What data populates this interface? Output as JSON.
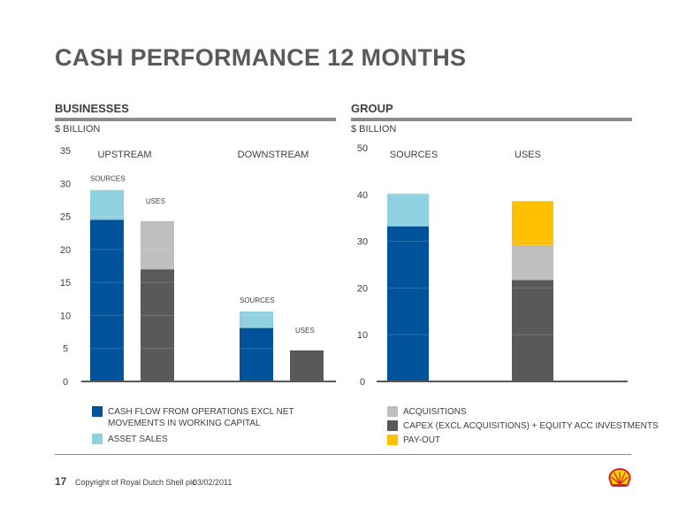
{
  "title": "CASH PERFORMANCE 12 MONTHS",
  "left_section": {
    "heading": "BUSINESSES",
    "unit": "$ BILLION"
  },
  "right_section": {
    "heading": "GROUP",
    "unit": "$ BILLION"
  },
  "colors": {
    "cfo": "#00529b",
    "asset_sales": "#8fd1e0",
    "acquisitions": "#bfbfbf",
    "capex": "#595959",
    "payout": "#ffc000",
    "axis": "#595959"
  },
  "legend": {
    "cfo": "CASH FLOW FROM OPERATIONS EXCL NET MOVEMENTS IN WORKING CAPITAL",
    "cfo_line1": "CASH FLOW FROM OPERATIONS EXCL NET",
    "cfo_line2": "MOVEMENTS IN WORKING CAPITAL",
    "asset_sales": "ASSET SALES",
    "acquisitions": "ACQUISITIONS",
    "capex": "CAPEX (EXCL ACQUISITIONS) + EQUITY ACC INVESTMENTS",
    "payout": "PAY-OUT"
  },
  "footer": {
    "page_number": "17",
    "copyright": "Copyright of Royal Dutch Shell plc",
    "date": "03/02/2011"
  },
  "chart_data": [
    {
      "type": "bar",
      "stacked": true,
      "ylim": [
        0,
        35
      ],
      "yticks": [
        0,
        5,
        10,
        15,
        20,
        25,
        30,
        35
      ],
      "groups": [
        "UPSTREAM",
        "DOWNSTREAM"
      ],
      "bars": [
        {
          "group": "UPSTREAM",
          "label": "SOURCES",
          "segments": [
            {
              "series": "cfo",
              "value": 24.5
            },
            {
              "series": "asset_sales",
              "value": 4.5
            }
          ]
        },
        {
          "group": "UPSTREAM",
          "label": "USES",
          "segments": [
            {
              "series": "capex",
              "value": 17.0
            },
            {
              "series": "acquisitions",
              "value": 7.3
            }
          ]
        },
        {
          "group": "DOWNSTREAM",
          "label": "SOURCES",
          "segments": [
            {
              "series": "cfo",
              "value": 8.1
            },
            {
              "series": "asset_sales",
              "value": 2.5
            }
          ]
        },
        {
          "group": "DOWNSTREAM",
          "label": "USES",
          "segments": [
            {
              "series": "capex",
              "value": 4.7
            }
          ]
        }
      ]
    },
    {
      "type": "bar",
      "stacked": true,
      "ylim": [
        0,
        50
      ],
      "yticks": [
        0,
        10,
        20,
        30,
        40,
        50
      ],
      "groups": [
        "SOURCES",
        "USES"
      ],
      "bars": [
        {
          "group": "SOURCES",
          "segments": [
            {
              "series": "cfo",
              "value": 33.2
            },
            {
              "series": "asset_sales",
              "value": 7.0
            }
          ]
        },
        {
          "group": "USES",
          "segments": [
            {
              "series": "capex",
              "value": 21.7
            },
            {
              "series": "acquisitions",
              "value": 7.5
            },
            {
              "series": "payout",
              "value": 9.4
            }
          ]
        }
      ]
    }
  ]
}
